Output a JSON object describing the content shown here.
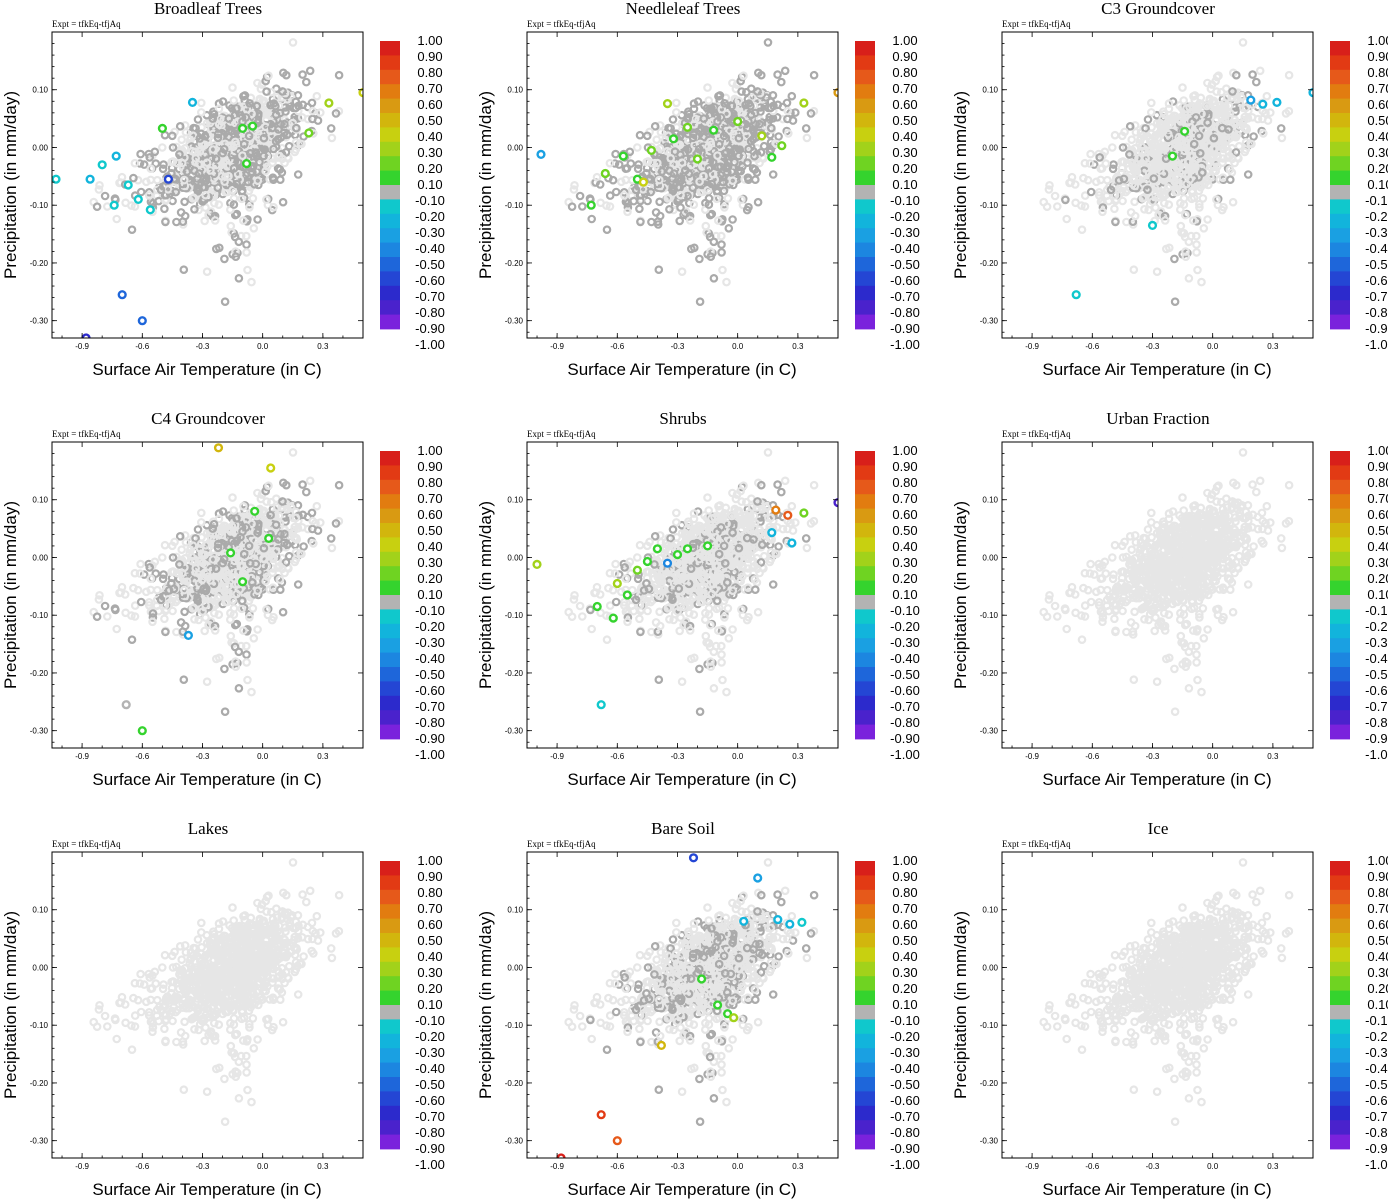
{
  "chart_data": {
    "type": "scatter",
    "xlabel": "Surface Air Temperature (in C)",
    "ylabel": "Precipitation (in mm/day)",
    "experiment_label": "Expt = tfkEq-tfjAq",
    "xlim": [
      -1.05,
      0.5
    ],
    "ylim": [
      -0.33,
      0.2
    ],
    "xticks": [
      -0.9,
      -0.6,
      -0.3,
      0.0,
      0.3
    ],
    "xtick_labels": [
      "-0.9",
      "-0.6",
      "-0.3",
      "0.0",
      "0.3"
    ],
    "yticks": [
      -0.3,
      -0.2,
      -0.1,
      0.0,
      0.1
    ],
    "ytick_labels": [
      "-0.30",
      "-0.20",
      "-0.10",
      "0.00",
      "0.10"
    ],
    "colorbar": {
      "labels": [
        "1.00",
        "0.90",
        "0.80",
        "0.70",
        "0.60",
        "0.50",
        "0.40",
        "0.30",
        "0.20",
        "0.10",
        "-0.10",
        "-0.20",
        "-0.30",
        "-0.40",
        "-0.50",
        "-0.60",
        "-0.70",
        "-0.80",
        "-0.90",
        "-1.00"
      ],
      "colors": [
        "#d81f1a",
        "#e23a14",
        "#e6591a",
        "#e27c10",
        "#d99a12",
        "#d2b60d",
        "#c8d010",
        "#a2d21a",
        "#6fd322",
        "#35d32e",
        "#b3b3b3",
        "#10c8cc",
        "#12b4dc",
        "#1aa0e2",
        "#1c86e0",
        "#1e66da",
        "#2446d4",
        "#2c2acc",
        "#4a22cc",
        "#7a22dc"
      ]
    },
    "base_colors": {
      "background_points": "#e6e6e6",
      "neutral_points": "#aaaaaa"
    },
    "panels": [
      {
        "title": "Broadleaf Trees",
        "highlighted_points": [
          {
            "x": -1.03,
            "y": -0.055,
            "v": -0.2
          },
          {
            "x": -0.88,
            "y": -0.33,
            "v": -0.85
          },
          {
            "x": -0.86,
            "y": -0.055,
            "v": -0.3
          },
          {
            "x": -0.8,
            "y": -0.03,
            "v": -0.2
          },
          {
            "x": -0.74,
            "y": -0.1,
            "v": -0.2
          },
          {
            "x": -0.73,
            "y": -0.015,
            "v": -0.3
          },
          {
            "x": -0.7,
            "y": -0.255,
            "v": -0.6
          },
          {
            "x": -0.67,
            "y": -0.065,
            "v": -0.2
          },
          {
            "x": -0.62,
            "y": -0.09,
            "v": -0.2
          },
          {
            "x": -0.6,
            "y": -0.3,
            "v": -0.6
          },
          {
            "x": -0.56,
            "y": -0.108,
            "v": -0.2
          },
          {
            "x": -0.5,
            "y": 0.033,
            "v": 0.1
          },
          {
            "x": -0.47,
            "y": -0.055,
            "v": -0.7
          },
          {
            "x": -0.35,
            "y": 0.078,
            "v": -0.3
          },
          {
            "x": -0.1,
            "y": 0.033,
            "v": 0.1
          },
          {
            "x": -0.08,
            "y": -0.028,
            "v": 0.1
          },
          {
            "x": -0.05,
            "y": 0.037,
            "v": 0.1
          },
          {
            "x": 0.23,
            "y": 0.025,
            "v": 0.2
          },
          {
            "x": 0.33,
            "y": 0.077,
            "v": 0.3
          },
          {
            "x": 0.5,
            "y": 0.095,
            "v": 0.4
          }
        ]
      },
      {
        "title": "Needleleaf Trees",
        "highlighted_points": [
          {
            "x": -0.98,
            "y": -0.012,
            "v": -0.4
          },
          {
            "x": -0.73,
            "y": -0.1,
            "v": 0.1
          },
          {
            "x": -0.66,
            "y": -0.045,
            "v": 0.2
          },
          {
            "x": -0.57,
            "y": -0.015,
            "v": 0.1
          },
          {
            "x": -0.5,
            "y": -0.055,
            "v": 0.1
          },
          {
            "x": -0.47,
            "y": -0.06,
            "v": 0.4
          },
          {
            "x": -0.43,
            "y": -0.005,
            "v": 0.2
          },
          {
            "x": -0.35,
            "y": 0.076,
            "v": 0.3
          },
          {
            "x": -0.32,
            "y": 0.015,
            "v": 0.1
          },
          {
            "x": -0.25,
            "y": 0.035,
            "v": 0.2
          },
          {
            "x": -0.2,
            "y": -0.02,
            "v": 0.2
          },
          {
            "x": -0.12,
            "y": 0.03,
            "v": 0.1
          },
          {
            "x": 0.0,
            "y": 0.045,
            "v": 0.2
          },
          {
            "x": 0.12,
            "y": 0.02,
            "v": 0.3
          },
          {
            "x": 0.17,
            "y": -0.017,
            "v": 0.1
          },
          {
            "x": 0.22,
            "y": 0.003,
            "v": 0.2
          },
          {
            "x": 0.33,
            "y": 0.077,
            "v": 0.3
          },
          {
            "x": 0.5,
            "y": 0.095,
            "v": 0.6
          }
        ]
      },
      {
        "title": "C3 Groundcover",
        "highlighted_points": [
          {
            "x": -0.68,
            "y": -0.255,
            "v": -0.2
          },
          {
            "x": -0.3,
            "y": -0.135,
            "v": -0.2
          },
          {
            "x": -0.2,
            "y": -0.015,
            "v": 0.1
          },
          {
            "x": -0.14,
            "y": 0.028,
            "v": 0.1
          },
          {
            "x": 0.19,
            "y": 0.082,
            "v": -0.4
          },
          {
            "x": 0.25,
            "y": 0.075,
            "v": -0.3
          },
          {
            "x": 0.32,
            "y": 0.078,
            "v": -0.3
          },
          {
            "x": 0.5,
            "y": 0.095,
            "v": -0.3
          }
        ]
      },
      {
        "title": "C4 Groundcover",
        "highlighted_points": [
          {
            "x": -0.68,
            "y": -0.255,
            "v": -0.1
          },
          {
            "x": -0.6,
            "y": -0.3,
            "v": 0.1
          },
          {
            "x": -0.37,
            "y": -0.135,
            "v": -0.4
          },
          {
            "x": -0.22,
            "y": 0.19,
            "v": 0.5
          },
          {
            "x": -0.16,
            "y": 0.008,
            "v": 0.1
          },
          {
            "x": -0.1,
            "y": -0.042,
            "v": 0.1
          },
          {
            "x": -0.04,
            "y": 0.08,
            "v": 0.1
          },
          {
            "x": 0.03,
            "y": 0.033,
            "v": 0.1
          },
          {
            "x": 0.04,
            "y": 0.155,
            "v": 0.4
          }
        ]
      },
      {
        "title": "Shrubs",
        "highlighted_points": [
          {
            "x": -1.0,
            "y": -0.012,
            "v": 0.3
          },
          {
            "x": -0.68,
            "y": -0.255,
            "v": -0.2
          },
          {
            "x": -0.7,
            "y": -0.085,
            "v": 0.1
          },
          {
            "x": -0.6,
            "y": -0.045,
            "v": 0.3
          },
          {
            "x": -0.55,
            "y": -0.065,
            "v": 0.1
          },
          {
            "x": -0.5,
            "y": -0.022,
            "v": 0.2
          },
          {
            "x": -0.45,
            "y": -0.007,
            "v": 0.1
          },
          {
            "x": -0.4,
            "y": 0.015,
            "v": 0.1
          },
          {
            "x": -0.35,
            "y": -0.01,
            "v": -0.5
          },
          {
            "x": -0.3,
            "y": 0.005,
            "v": 0.1
          },
          {
            "x": -0.25,
            "y": 0.015,
            "v": 0.1
          },
          {
            "x": -0.15,
            "y": 0.02,
            "v": 0.1
          },
          {
            "x": -0.62,
            "y": -0.105,
            "v": 0.1
          },
          {
            "x": 0.17,
            "y": 0.043,
            "v": -0.3
          },
          {
            "x": 0.19,
            "y": 0.082,
            "v": 0.7
          },
          {
            "x": 0.25,
            "y": 0.073,
            "v": 0.8
          },
          {
            "x": 0.27,
            "y": 0.025,
            "v": -0.3
          },
          {
            "x": 0.33,
            "y": 0.077,
            "v": 0.2
          },
          {
            "x": 0.5,
            "y": 0.095,
            "v": -0.9
          }
        ]
      },
      {
        "title": "Urban Fraction",
        "highlighted_points": []
      },
      {
        "title": "Lakes",
        "highlighted_points": []
      },
      {
        "title": "Bare Soil",
        "highlighted_points": [
          {
            "x": -0.88,
            "y": -0.33,
            "v": 1.0
          },
          {
            "x": -0.68,
            "y": -0.255,
            "v": 0.9
          },
          {
            "x": -0.6,
            "y": -0.3,
            "v": 0.8
          },
          {
            "x": -0.38,
            "y": -0.135,
            "v": 0.5
          },
          {
            "x": -0.22,
            "y": 0.19,
            "v": -0.7
          },
          {
            "x": -0.18,
            "y": -0.02,
            "v": 0.1
          },
          {
            "x": -0.1,
            "y": -0.065,
            "v": 0.1
          },
          {
            "x": -0.05,
            "y": -0.08,
            "v": 0.1
          },
          {
            "x": -0.02,
            "y": -0.087,
            "v": 0.3
          },
          {
            "x": 0.03,
            "y": 0.08,
            "v": -0.3
          },
          {
            "x": 0.1,
            "y": 0.155,
            "v": -0.4
          },
          {
            "x": 0.2,
            "y": 0.083,
            "v": -0.3
          },
          {
            "x": 0.26,
            "y": 0.075,
            "v": -0.3
          },
          {
            "x": 0.32,
            "y": 0.078,
            "v": -0.2
          }
        ]
      },
      {
        "title": "Ice",
        "highlighted_points": []
      }
    ]
  }
}
